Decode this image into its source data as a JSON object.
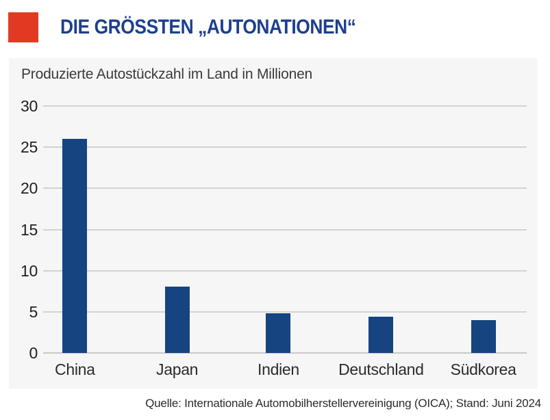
{
  "header": {
    "title": "DIE GRÖSSTEN „AUTONATIONEN“",
    "title_color": "#1c3f8f",
    "accent_color": "#e03b22"
  },
  "chart_data": {
    "type": "bar",
    "title": "Produzierte Autostückzahl im Land in Millionen",
    "categories": [
      "China",
      "Japan",
      "Indien",
      "Deutschland",
      "Südkorea"
    ],
    "values": [
      26,
      8.1,
      4.8,
      4.4,
      4
    ],
    "xlabel": "",
    "ylabel": "",
    "ylim": [
      0,
      30
    ],
    "yticks": [
      0,
      5,
      10,
      15,
      20,
      25,
      30
    ],
    "grid": true,
    "legend": "none",
    "bar_color": "#164480",
    "card_background": "#f6f6f7",
    "centers_pct": [
      6.3,
      27.5,
      48.5,
      69.8,
      91.0
    ]
  },
  "source": {
    "text": "Quelle: Internationale Automobilherstellervereinigung (OICA); Stand: Juni 2024"
  }
}
